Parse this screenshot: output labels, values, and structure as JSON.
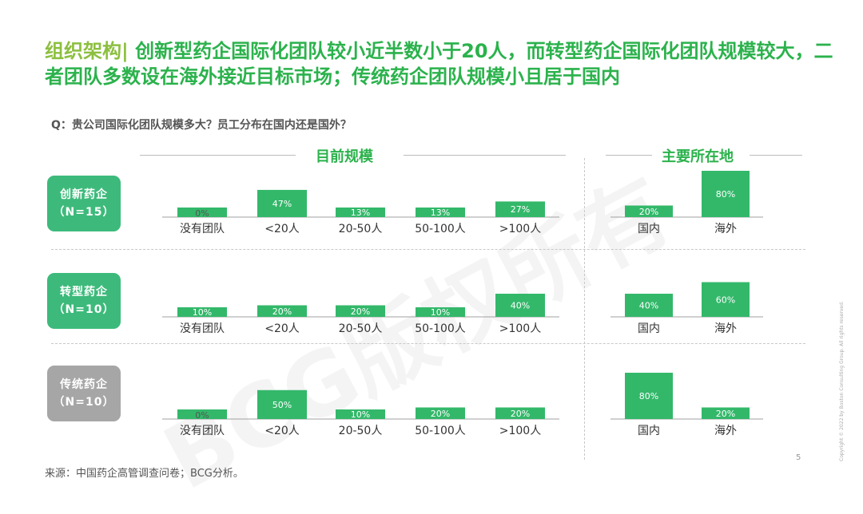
{
  "title": {
    "lead": "组织架构|",
    "text": " 创新型药企国际化团队较小近半数小于20人，而转型药企国际化团队规模较大，二者团队多数设在海外接近目标市场；传统药企团队规模小且居于国内"
  },
  "question": "Q：贵公司国际化团队规模多大？员工分布在国内还是国外？",
  "section_titles": {
    "size": "目前规模",
    "location": "主要所在地"
  },
  "groups": [
    {
      "name": "创新药企",
      "n": "（N=15）",
      "color": "#3dba7b"
    },
    {
      "name": "转型药企",
      "n": "（N=10）",
      "color": "#3dba7b"
    },
    {
      "name": "传统药企",
      "n": "（N=10）",
      "color": "#a6a6a6"
    }
  ],
  "chart_data": [
    {
      "type": "bar",
      "title": "目前规模",
      "categories": [
        "没有团队",
        "<20人",
        "20-50人",
        "50-100人",
        ">100人"
      ],
      "unit": "%",
      "ylim": [
        0,
        80
      ],
      "series": [
        {
          "name": "创新药企（N=15）",
          "values": [
            0,
            47,
            13,
            13,
            27
          ]
        },
        {
          "name": "转型药企（N=10）",
          "values": [
            10,
            20,
            20,
            10,
            40
          ]
        },
        {
          "name": "传统药企（N=10）",
          "values": [
            0,
            50,
            10,
            20,
            20
          ]
        }
      ]
    },
    {
      "type": "bar",
      "title": "主要所在地",
      "categories": [
        "国内",
        "海外"
      ],
      "unit": "%",
      "ylim": [
        0,
        80
      ],
      "series": [
        {
          "name": "创新药企（N=15）",
          "values": [
            20,
            80
          ]
        },
        {
          "name": "转型药企（N=10）",
          "values": [
            40,
            60
          ]
        },
        {
          "name": "传统药企（N=10）",
          "values": [
            80,
            20
          ]
        }
      ]
    }
  ],
  "bar_color": "#33b86a",
  "footnote": "来源：中国药企高管调查问卷；BCG分析。",
  "page_number": "5",
  "copyright": "Copyright © 2022 by Boston Consulting Group. All rights reserved.",
  "watermark": "BCG版权所有"
}
